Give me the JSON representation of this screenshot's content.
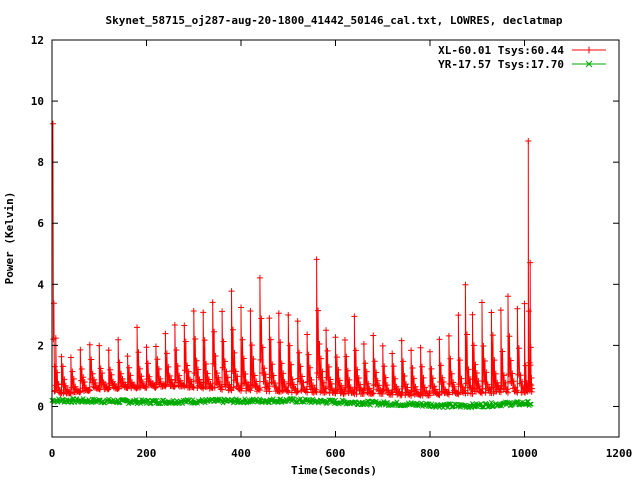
{
  "chart_data": {
    "type": "line",
    "title": "Skynet_58715_oj287-aug-20-1800_41442_50146_cal.txt, LOWRES, declatmap",
    "xlabel": "Time(Seconds)",
    "ylabel": "Power (Kelvin)",
    "xlim": [
      0,
      1200
    ],
    "ylim": [
      -1,
      12
    ],
    "xticks": [
      0,
      200,
      400,
      600,
      800,
      1000,
      1200
    ],
    "yticks": [
      0,
      2,
      4,
      6,
      8,
      10,
      12
    ],
    "grid": false,
    "legend": "top-right",
    "series": [
      {
        "name": "XL-60.01 Tsys:60.44",
        "color": "#ff0000",
        "marker": "plus",
        "baseline": [
          [
            0,
            0.35
          ],
          [
            50,
            0.45
          ],
          [
            100,
            0.55
          ],
          [
            150,
            0.6
          ],
          [
            200,
            0.6
          ],
          [
            250,
            0.65
          ],
          [
            300,
            0.6
          ],
          [
            350,
            0.55
          ],
          [
            400,
            0.5
          ],
          [
            450,
            0.5
          ],
          [
            500,
            0.45
          ],
          [
            550,
            0.45
          ],
          [
            600,
            0.4
          ],
          [
            650,
            0.4
          ],
          [
            700,
            0.4
          ],
          [
            750,
            0.35
          ],
          [
            800,
            0.35
          ],
          [
            850,
            0.4
          ],
          [
            900,
            0.4
          ],
          [
            950,
            0.45
          ],
          [
            1000,
            0.45
          ],
          [
            1015,
            0.45
          ]
        ],
        "peaks": [
          [
            2,
            9.5
          ],
          [
            8,
            2.3
          ],
          [
            20,
            1.9
          ],
          [
            40,
            1.8
          ],
          [
            60,
            1.9
          ],
          [
            80,
            2.3
          ],
          [
            100,
            2.0
          ],
          [
            120,
            1.9
          ],
          [
            140,
            2.3
          ],
          [
            160,
            1.9
          ],
          [
            180,
            2.6
          ],
          [
            200,
            2.0
          ],
          [
            220,
            2.3
          ],
          [
            240,
            2.5
          ],
          [
            260,
            2.7
          ],
          [
            280,
            3.1
          ],
          [
            300,
            3.5
          ],
          [
            320,
            3.4
          ],
          [
            340,
            3.7
          ],
          [
            360,
            3.6
          ],
          [
            380,
            4.1
          ],
          [
            400,
            3.4
          ],
          [
            420,
            3.4
          ],
          [
            440,
            4.5
          ],
          [
            460,
            3.4
          ],
          [
            480,
            3.2
          ],
          [
            500,
            3.0
          ],
          [
            520,
            2.9
          ],
          [
            540,
            2.7
          ],
          [
            560,
            5.6
          ],
          [
            580,
            2.8
          ],
          [
            600,
            2.6
          ],
          [
            620,
            2.5
          ],
          [
            640,
            3.0
          ],
          [
            660,
            2.4
          ],
          [
            680,
            2.5
          ],
          [
            700,
            2.0
          ],
          [
            720,
            2.0
          ],
          [
            740,
            2.3
          ],
          [
            760,
            1.9
          ],
          [
            780,
            2.0
          ],
          [
            800,
            1.9
          ],
          [
            820,
            2.3
          ],
          [
            840,
            2.6
          ],
          [
            860,
            3.0
          ],
          [
            875,
            4.6
          ],
          [
            890,
            3.5
          ],
          [
            910,
            3.5
          ],
          [
            930,
            3.6
          ],
          [
            950,
            3.5
          ],
          [
            965,
            3.7
          ],
          [
            985,
            3.5
          ],
          [
            1000,
            3.4
          ],
          [
            1008,
            9.7
          ],
          [
            1012,
            5.3
          ]
        ]
      },
      {
        "name": "YR-17.57 Tsys:17.70",
        "color": "#00aa00",
        "marker": "cross",
        "points": [
          [
            0,
            0.2
          ],
          [
            100,
            0.18
          ],
          [
            200,
            0.15
          ],
          [
            300,
            0.17
          ],
          [
            400,
            0.18
          ],
          [
            500,
            0.2
          ],
          [
            600,
            0.15
          ],
          [
            700,
            0.1
          ],
          [
            800,
            0.05
          ],
          [
            850,
            0.02
          ],
          [
            900,
            0.03
          ],
          [
            950,
            0.08
          ],
          [
            1000,
            0.1
          ],
          [
            1015,
            0.1
          ]
        ]
      }
    ]
  }
}
